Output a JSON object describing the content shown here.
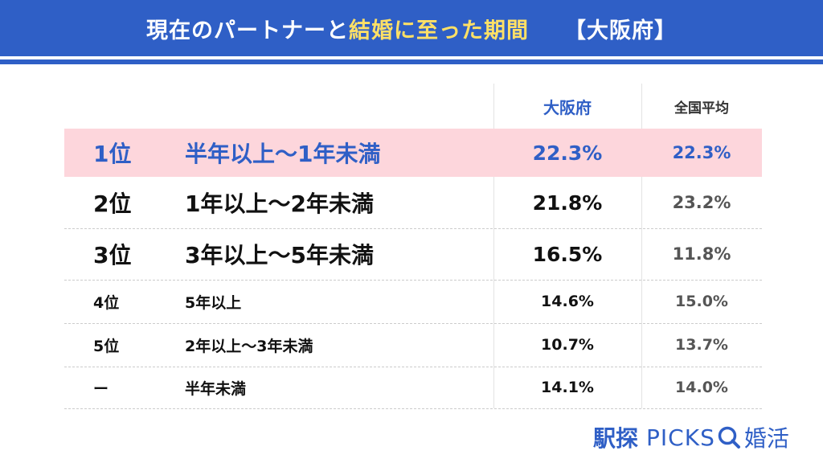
{
  "header": {
    "title_part1": "現在のパートナーと",
    "title_highlight": "結婚に至った期間",
    "title_region": "【大阪府】"
  },
  "chart_data": {
    "type": "table",
    "columns": [
      "大阪府",
      "全国平均"
    ],
    "rows": [
      {
        "rank": "1位",
        "label": "半年以上～1年未満",
        "osaka": "22.3%",
        "national": "22.3%"
      },
      {
        "rank": "2位",
        "label": "1年以上～2年未満",
        "osaka": "21.8%",
        "national": "23.2%"
      },
      {
        "rank": "3位",
        "label": "3年以上～5年未満",
        "osaka": "16.5%",
        "national": "11.8%"
      },
      {
        "rank": "4位",
        "label": "5年以上",
        "osaka": "14.6%",
        "national": "15.0%"
      },
      {
        "rank": "5位",
        "label": "2年以上～3年未満",
        "osaka": "10.7%",
        "national": "13.7%"
      },
      {
        "rank": "ー",
        "label": "半年未満",
        "osaka": "14.1%",
        "national": "14.0%"
      }
    ]
  },
  "logo": {
    "part1": "駅探",
    "part2": "PICKS",
    "part3": "婚活"
  },
  "colors": {
    "accent": "#2f5fc6",
    "highlight_row": "#fdd6dc",
    "title_highlight": "#ffe066"
  }
}
